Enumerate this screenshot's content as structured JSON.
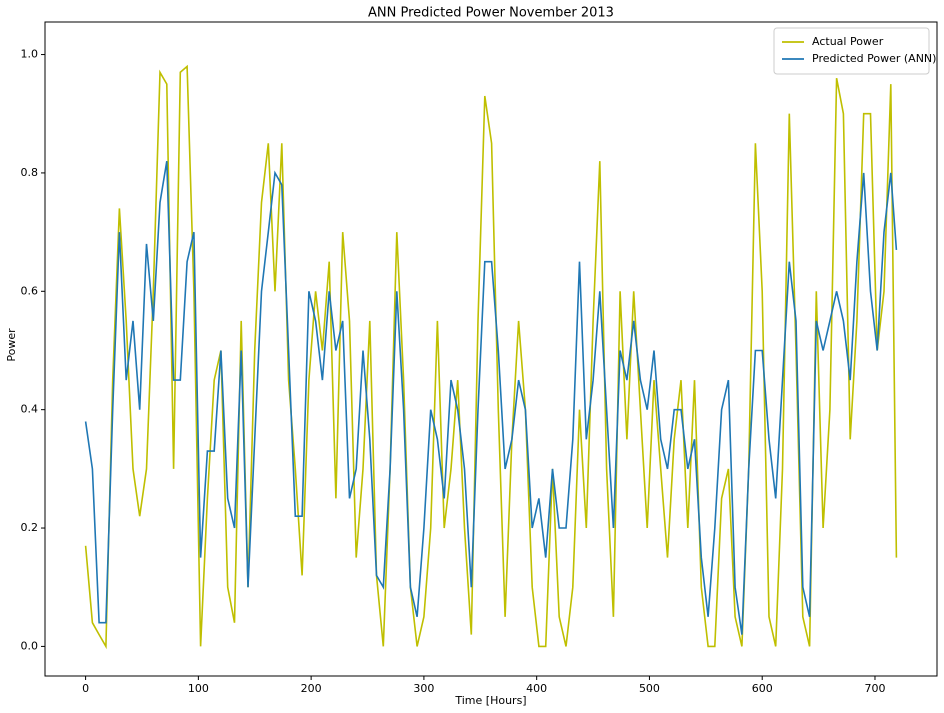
{
  "chart_data": {
    "type": "line",
    "title": "ANN Predicted Power November 2013",
    "xlabel": "Time [Hours]",
    "ylabel": "Power",
    "x": [
      0,
      6,
      12,
      18,
      24,
      30,
      36,
      42,
      48,
      54,
      60,
      66,
      72,
      78,
      84,
      90,
      96,
      102,
      108,
      114,
      120,
      126,
      132,
      138,
      144,
      150,
      156,
      162,
      168,
      174,
      180,
      186,
      192,
      198,
      204,
      210,
      216,
      222,
      228,
      234,
      240,
      246,
      252,
      258,
      264,
      270,
      276,
      282,
      288,
      294,
      300,
      306,
      312,
      318,
      324,
      330,
      336,
      342,
      348,
      354,
      360,
      366,
      372,
      378,
      384,
      390,
      396,
      402,
      408,
      414,
      420,
      426,
      432,
      438,
      444,
      450,
      456,
      462,
      468,
      474,
      480,
      486,
      492,
      498,
      504,
      510,
      516,
      522,
      528,
      534,
      540,
      546,
      552,
      558,
      564,
      570,
      576,
      582,
      588,
      594,
      600,
      606,
      612,
      618,
      624,
      630,
      636,
      642,
      648,
      654,
      660,
      666,
      672,
      678,
      684,
      690,
      696,
      702,
      708,
      714,
      719
    ],
    "series": [
      {
        "name": "Actual Power",
        "color": "#bfbf00",
        "values": [
          0.17,
          0.04,
          0.02,
          0.0,
          0.45,
          0.74,
          0.55,
          0.3,
          0.22,
          0.3,
          0.6,
          0.97,
          0.95,
          0.3,
          0.97,
          0.98,
          0.6,
          0.0,
          0.25,
          0.45,
          0.5,
          0.1,
          0.04,
          0.55,
          0.1,
          0.5,
          0.75,
          0.85,
          0.6,
          0.85,
          0.45,
          0.3,
          0.12,
          0.45,
          0.6,
          0.5,
          0.65,
          0.25,
          0.7,
          0.55,
          0.15,
          0.3,
          0.55,
          0.12,
          0.0,
          0.3,
          0.7,
          0.45,
          0.1,
          0.0,
          0.05,
          0.2,
          0.55,
          0.2,
          0.3,
          0.45,
          0.2,
          0.02,
          0.55,
          0.93,
          0.85,
          0.4,
          0.05,
          0.35,
          0.55,
          0.4,
          0.1,
          0.0,
          0.0,
          0.3,
          0.05,
          0.0,
          0.1,
          0.4,
          0.2,
          0.55,
          0.82,
          0.3,
          0.05,
          0.6,
          0.35,
          0.6,
          0.4,
          0.2,
          0.45,
          0.3,
          0.15,
          0.35,
          0.45,
          0.2,
          0.45,
          0.1,
          0.0,
          0.0,
          0.25,
          0.3,
          0.05,
          0.0,
          0.3,
          0.85,
          0.6,
          0.05,
          0.0,
          0.3,
          0.9,
          0.5,
          0.05,
          0.0,
          0.6,
          0.2,
          0.4,
          0.96,
          0.9,
          0.35,
          0.55,
          0.9,
          0.9,
          0.5,
          0.6,
          0.95,
          0.15
        ]
      },
      {
        "name": "Predicted Power (ANN)",
        "color": "#1f77b4",
        "values": [
          0.38,
          0.3,
          0.04,
          0.04,
          0.4,
          0.7,
          0.45,
          0.55,
          0.4,
          0.68,
          0.55,
          0.75,
          0.82,
          0.45,
          0.45,
          0.65,
          0.7,
          0.15,
          0.33,
          0.33,
          0.5,
          0.25,
          0.2,
          0.5,
          0.1,
          0.35,
          0.6,
          0.7,
          0.8,
          0.78,
          0.5,
          0.22,
          0.22,
          0.6,
          0.55,
          0.45,
          0.6,
          0.5,
          0.55,
          0.25,
          0.3,
          0.5,
          0.35,
          0.12,
          0.1,
          0.3,
          0.6,
          0.4,
          0.1,
          0.05,
          0.2,
          0.4,
          0.35,
          0.25,
          0.45,
          0.4,
          0.3,
          0.1,
          0.4,
          0.65,
          0.65,
          0.5,
          0.3,
          0.35,
          0.45,
          0.4,
          0.2,
          0.25,
          0.15,
          0.3,
          0.2,
          0.2,
          0.35,
          0.65,
          0.35,
          0.45,
          0.6,
          0.4,
          0.2,
          0.5,
          0.45,
          0.55,
          0.45,
          0.4,
          0.5,
          0.35,
          0.3,
          0.4,
          0.4,
          0.3,
          0.35,
          0.15,
          0.05,
          0.2,
          0.4,
          0.45,
          0.1,
          0.02,
          0.3,
          0.5,
          0.5,
          0.35,
          0.25,
          0.45,
          0.65,
          0.55,
          0.1,
          0.05,
          0.55,
          0.5,
          0.55,
          0.6,
          0.55,
          0.45,
          0.65,
          0.8,
          0.6,
          0.5,
          0.7,
          0.8,
          0.67
        ]
      }
    ],
    "xlim": [
      -36,
      755
    ],
    "ylim": [
      -0.05,
      1.055
    ],
    "xticks": [
      0,
      100,
      200,
      300,
      400,
      500,
      600,
      700
    ],
    "yticks": [
      {
        "value": 0,
        "label": "0.0"
      },
      0.2,
      0.4,
      0.6,
      0.8,
      {
        "value": 1,
        "label": "1.0"
      }
    ],
    "legend": "upper right"
  }
}
